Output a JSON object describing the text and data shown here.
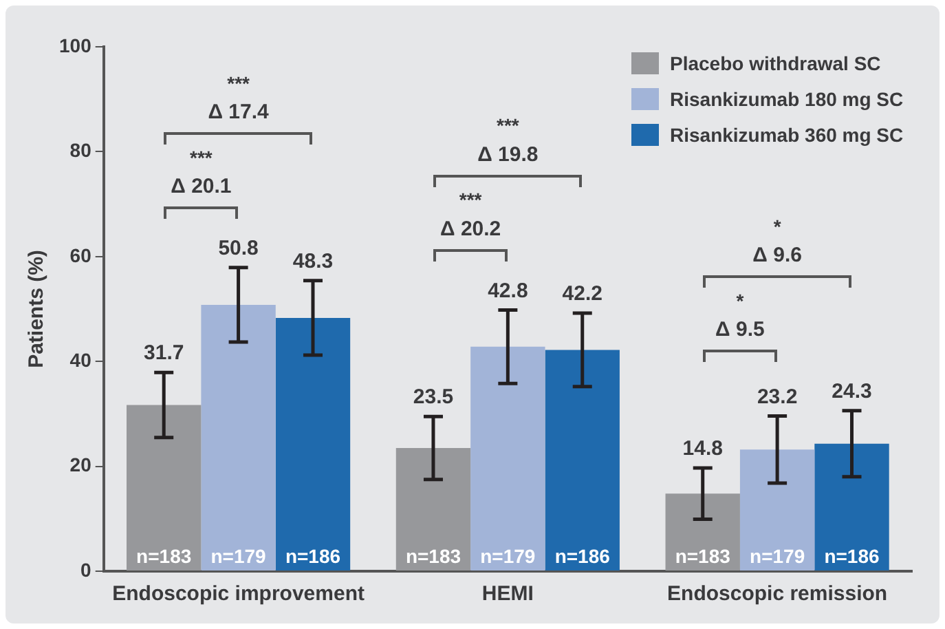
{
  "chart_data": {
    "type": "bar",
    "ylabel": "Patients (%)",
    "categories": [
      "Endoscopic improvement",
      "HEMI",
      "Endoscopic remission"
    ],
    "series": [
      {
        "name": "Placebo withdrawal SC",
        "color": "#97989b",
        "values": [
          31.7,
          23.5,
          14.8
        ],
        "errors": [
          6.2,
          6.0,
          4.9
        ]
      },
      {
        "name": "Risankizumab 180 mg SC",
        "color": "#a2b4d8",
        "values": [
          50.8,
          42.8,
          23.2
        ],
        "errors": [
          7.1,
          7.0,
          6.4
        ]
      },
      {
        "name": "Risankizumab 360 mg SC",
        "color": "#1f6aad",
        "values": [
          48.3,
          42.2,
          24.3
        ],
        "errors": [
          7.1,
          7.0,
          6.3
        ]
      }
    ],
    "ylim": [
      0,
      100
    ],
    "yticks": [
      0,
      20,
      40,
      60,
      80,
      100
    ],
    "grid": false,
    "legend": "top right",
    "data_labels": true,
    "annotations": [
      "***",
      "Δ 20.1",
      "***",
      "Δ 17.4",
      "***",
      "Δ 20.2",
      "***",
      "Δ 19.8",
      "*",
      "Δ 9.5",
      "*",
      "Δ 9.6",
      "n=183",
      "n=179",
      "n=186",
      "n=183",
      "n=179",
      "n=186",
      "n=183",
      "n=179",
      "n=186"
    ]
  }
}
